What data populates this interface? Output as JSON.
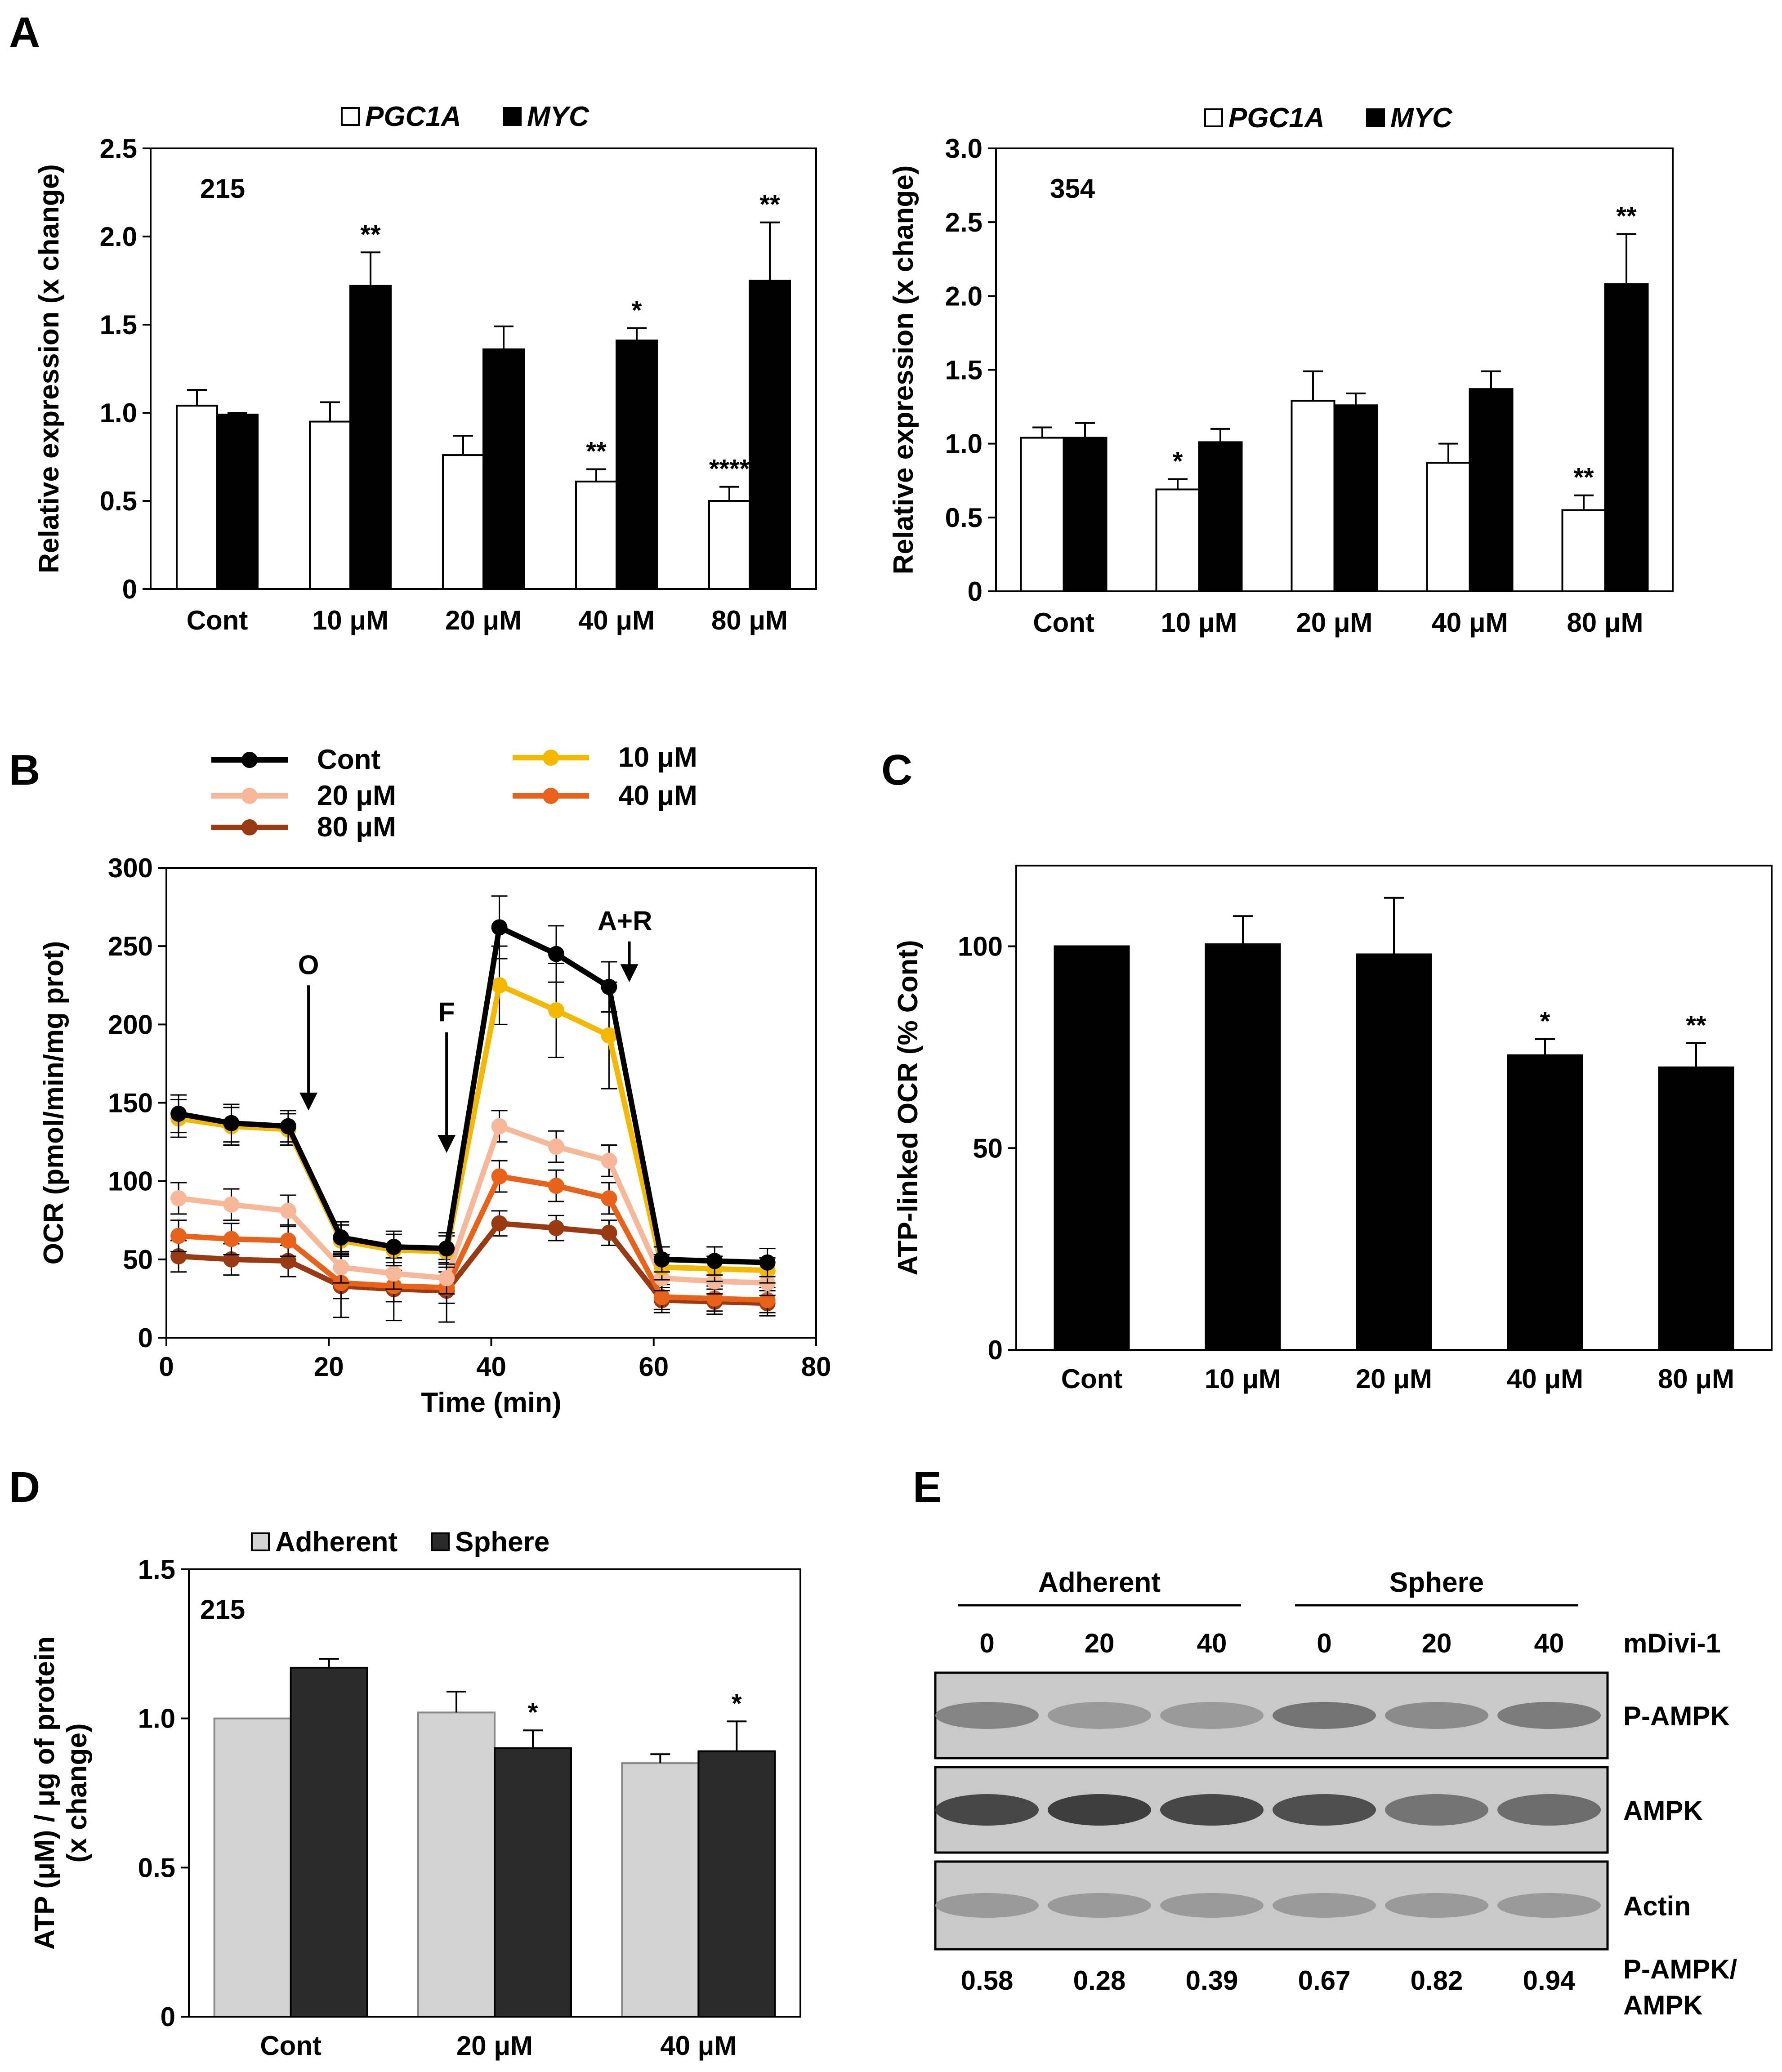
{
  "panel_labels": {
    "A": "A",
    "B": "B",
    "C": "C",
    "D": "D",
    "E": "E"
  },
  "colors": {
    "pgc1a": "#ffffff",
    "myc": "#000000",
    "adherent": "#d3d3d3",
    "sphere": "#2b2b2b",
    "cont": "#000000",
    "u10": "#f5b800",
    "u20": "#f7b89a",
    "u40": "#e8621a",
    "u80": "#9a3a12"
  },
  "chart_data": [
    {
      "id": "A1",
      "type": "bar",
      "annotation": "215",
      "ylabel": "Relative expression (x change)",
      "categories": [
        "Cont",
        "10 μM",
        "20 μM",
        "40 μM",
        "80 μM"
      ],
      "ylim": [
        0,
        2.5
      ],
      "yticks": [
        0,
        0.5,
        1.0,
        1.5,
        2.0,
        2.5
      ],
      "ytick_labels": [
        "0",
        "0.5",
        "1.0",
        "1.5",
        "2.0",
        "2.5"
      ],
      "legend_position": "top",
      "series": [
        {
          "name": "PGC1A",
          "values": [
            1.04,
            0.95,
            0.76,
            0.61,
            0.5
          ],
          "errors": [
            0.09,
            0.11,
            0.11,
            0.07,
            0.08
          ],
          "stars": [
            "",
            "",
            "",
            "**",
            "****"
          ]
        },
        {
          "name": "MYC",
          "values": [
            0.99,
            1.72,
            1.36,
            1.41,
            1.75
          ],
          "errors": [
            0.01,
            0.19,
            0.13,
            0.07,
            0.33
          ],
          "stars": [
            "",
            "**",
            "",
            "*",
            "**"
          ]
        }
      ]
    },
    {
      "id": "A2",
      "type": "bar",
      "annotation": "354",
      "ylabel": "Relative expression (x change)",
      "categories": [
        "Cont",
        "10 μM",
        "20 μM",
        "40 μM",
        "80 μM"
      ],
      "ylim": [
        0,
        3.0
      ],
      "yticks": [
        0,
        0.5,
        1.0,
        1.5,
        2.0,
        2.5,
        3.0
      ],
      "ytick_labels": [
        "0",
        "0.5",
        "1.0",
        "1.5",
        "2.0",
        "2.5",
        "3.0"
      ],
      "legend_position": "top",
      "series": [
        {
          "name": "PGC1A",
          "values": [
            1.04,
            0.69,
            1.29,
            0.87,
            0.55
          ],
          "errors": [
            0.07,
            0.07,
            0.2,
            0.13,
            0.1
          ],
          "stars": [
            "",
            "*",
            "",
            "",
            "**"
          ]
        },
        {
          "name": "MYC",
          "values": [
            1.04,
            1.01,
            1.26,
            1.37,
            2.08
          ],
          "errors": [
            0.1,
            0.09,
            0.08,
            0.12,
            0.34
          ],
          "stars": [
            "",
            "",
            "",
            "",
            "**"
          ]
        }
      ]
    },
    {
      "id": "B",
      "type": "line",
      "xlabel": "Time (min)",
      "ylabel": "OCR (pmol/min/mg prot)",
      "xlim": [
        0,
        80
      ],
      "ylim": [
        0,
        300
      ],
      "xticks": [
        0,
        20,
        40,
        60,
        80
      ],
      "yticks": [
        0,
        50,
        100,
        150,
        200,
        250,
        300
      ],
      "x": [
        1.5,
        8,
        15,
        21.5,
        28,
        34.5,
        41,
        48,
        54.5,
        61,
        67.5,
        74
      ],
      "legend_position": "top",
      "annotations": [
        {
          "text": "O",
          "x": 17.5,
          "arrow_from": 225,
          "arrow_to": 145
        },
        {
          "text": "F",
          "x": 34.5,
          "arrow_from": 195,
          "arrow_to": 118
        },
        {
          "text": "A+R",
          "x": 57,
          "arrow_from": 253,
          "arrow_to": 227
        }
      ],
      "series": [
        {
          "name": "Cont",
          "values": [
            143,
            137,
            135,
            64,
            58,
            57,
            262,
            245,
            224,
            50,
            49,
            48
          ],
          "errors": [
            12,
            12,
            10,
            10,
            10,
            10,
            20,
            18,
            16,
            8,
            9,
            9
          ]
        },
        {
          "name": "10 μM",
          "values": [
            140,
            135,
            133,
            62,
            56,
            55,
            225,
            209,
            193,
            45,
            44,
            43
          ],
          "errors": [
            12,
            12,
            10,
            10,
            10,
            10,
            25,
            30,
            34,
            8,
            8,
            8
          ]
        },
        {
          "name": "20 μM",
          "values": [
            89,
            85,
            81,
            45,
            41,
            38,
            135,
            122,
            113,
            38,
            36,
            35
          ],
          "errors": [
            10,
            10,
            10,
            10,
            10,
            10,
            10,
            10,
            10,
            8,
            8,
            8
          ]
        },
        {
          "name": "40 μM",
          "values": [
            65,
            63,
            62,
            35,
            33,
            32,
            103,
            97,
            89,
            26,
            25,
            24
          ],
          "errors": [
            10,
            10,
            10,
            10,
            10,
            10,
            10,
            10,
            10,
            8,
            8,
            8
          ]
        },
        {
          "name": "80 μM",
          "values": [
            52,
            50,
            49,
            33,
            31,
            30,
            73,
            70,
            67,
            24,
            23,
            22
          ],
          "errors": [
            10,
            10,
            10,
            20,
            20,
            20,
            8,
            8,
            8,
            8,
            8,
            8
          ]
        }
      ]
    },
    {
      "id": "C",
      "type": "bar",
      "ylabel": "ATP-linked OCR (% Cont)",
      "categories": [
        "Cont",
        "10 μM",
        "20 μM",
        "40 μM",
        "80 μM"
      ],
      "ylim": [
        0,
        120
      ],
      "yticks": [
        0,
        50,
        100
      ],
      "ytick_labels": [
        "0",
        "50",
        "100"
      ],
      "series": [
        {
          "values": [
            100,
            100.5,
            98,
            73,
            70
          ],
          "errors": [
            0,
            7,
            14,
            4,
            6
          ],
          "stars": [
            "",
            "",
            "",
            "*",
            "**"
          ]
        }
      ]
    },
    {
      "id": "D",
      "type": "bar",
      "annotation": "215",
      "ylabel": "ATP (μM) / μg of protein",
      "ylabel2": "(x change)",
      "categories": [
        "Cont",
        "20 μM",
        "40 μM"
      ],
      "ylim": [
        0,
        1.5
      ],
      "yticks": [
        0,
        0.5,
        1.0,
        1.5
      ],
      "ytick_labels": [
        "0",
        "0.5",
        "1.0",
        "1.5"
      ],
      "legend_position": "top",
      "series": [
        {
          "name": "Adherent",
          "values": [
            1.0,
            1.02,
            0.85
          ],
          "errors": [
            0,
            0.07,
            0.03
          ],
          "stars": [
            "",
            "",
            ""
          ]
        },
        {
          "name": "Sphere",
          "values": [
            1.17,
            0.9,
            0.89
          ],
          "errors": [
            0.03,
            0.06,
            0.1
          ],
          "stars": [
            "",
            "*",
            "*"
          ]
        }
      ]
    }
  ],
  "blot": {
    "groups": [
      "Adherent",
      "Sphere"
    ],
    "lanes": [
      "0",
      "20",
      "40",
      "0",
      "20",
      "40"
    ],
    "treatment_label": "mDivi-1",
    "rows": [
      "P-AMPK",
      "AMPK",
      "Actin"
    ],
    "ratio_label_1": "P-AMPK/",
    "ratio_label_2": "AMPK",
    "ratios": [
      "0.58",
      "0.28",
      "0.39",
      "0.67",
      "0.82",
      "0.94"
    ],
    "band_intensity": {
      "P-AMPK": [
        0.45,
        0.3,
        0.3,
        0.55,
        0.4,
        0.5
      ],
      "AMPK": [
        0.85,
        0.9,
        0.85,
        0.8,
        0.55,
        0.6
      ],
      "Actin": [
        0.3,
        0.3,
        0.3,
        0.3,
        0.3,
        0.3
      ]
    }
  }
}
